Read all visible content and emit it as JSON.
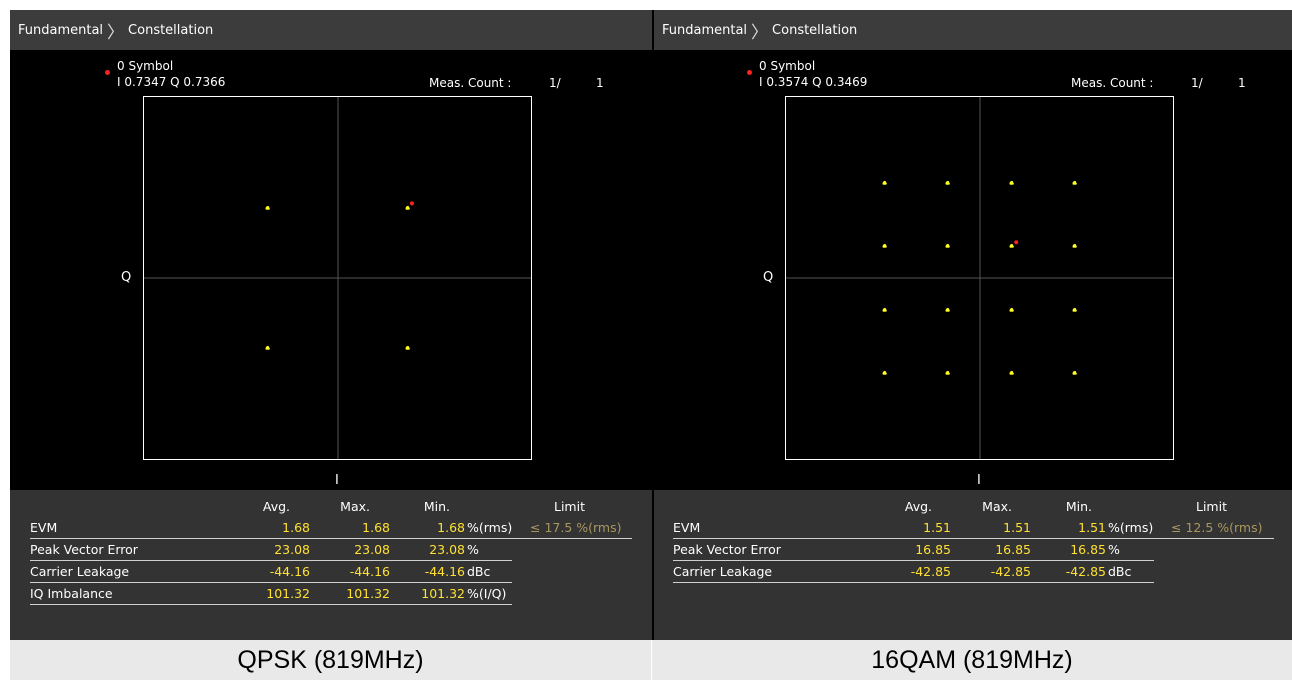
{
  "breadcrumb": {
    "root": "Fundamental",
    "separator": "〉",
    "page": "Constellation"
  },
  "panels": [
    {
      "id": "left",
      "marker": {
        "name": "0 Symbol",
        "readout": "I 0.7347 Q 0.7366"
      },
      "meas": {
        "label": "Meas. Count :",
        "current": "1/",
        "total": "1"
      },
      "axes": {
        "q_label": "Q",
        "i_label": "I"
      },
      "constellation": {
        "modulation": "QPSK",
        "points": [
          [
            -0.7,
            0.7
          ],
          [
            0.7,
            0.7
          ],
          [
            -0.7,
            -0.7
          ],
          [
            0.7,
            -0.7
          ]
        ],
        "marker_point": [
          0.7347,
          0.7366
        ],
        "dot_color": "#ffff20",
        "marker_color": "#ff2020"
      },
      "table": {
        "headers": {
          "avg": "Avg.",
          "max": "Max.",
          "min": "Min.",
          "limit": "Limit"
        },
        "rows": [
          {
            "name": "EVM",
            "avg": "1.68",
            "max": "1.68",
            "min": "1.68",
            "unit": "%(rms)",
            "limit": "≤ 17.5 %(rms)"
          },
          {
            "name": "Peak Vector Error",
            "avg": "23.08",
            "max": "23.08",
            "min": "23.08",
            "unit": "%",
            "limit": ""
          },
          {
            "name": "Carrier Leakage",
            "avg": "-44.16",
            "max": "-44.16",
            "min": "-44.16",
            "unit": "dBc",
            "limit": ""
          },
          {
            "name": "IQ Imbalance",
            "avg": "101.32",
            "max": "101.32",
            "min": "101.32",
            "unit": "%(I/Q)",
            "limit": ""
          }
        ]
      },
      "caption": "QPSK (819MHz)"
    },
    {
      "id": "right",
      "marker": {
        "name": "0 Symbol",
        "readout": "I 0.3574 Q 0.3469"
      },
      "meas": {
        "label": "Meas. Count :",
        "current": "1/",
        "total": "1"
      },
      "axes": {
        "q_label": "Q",
        "i_label": "I"
      },
      "constellation": {
        "modulation": "16QAM",
        "points": [
          [
            -0.95,
            0.95
          ],
          [
            -0.32,
            0.95
          ],
          [
            0.32,
            0.95
          ],
          [
            0.95,
            0.95
          ],
          [
            -0.95,
            0.32
          ],
          [
            -0.32,
            0.32
          ],
          [
            0.32,
            0.32
          ],
          [
            0.95,
            0.32
          ],
          [
            -0.95,
            -0.32
          ],
          [
            -0.32,
            -0.32
          ],
          [
            0.32,
            -0.32
          ],
          [
            0.95,
            -0.32
          ],
          [
            -0.95,
            -0.95
          ],
          [
            -0.32,
            -0.95
          ],
          [
            0.32,
            -0.95
          ],
          [
            0.95,
            -0.95
          ]
        ],
        "marker_point": [
          0.3574,
          0.3469
        ],
        "dot_color": "#ffff20",
        "marker_color": "#ff2020"
      },
      "table": {
        "headers": {
          "avg": "Avg.",
          "max": "Max.",
          "min": "Min.",
          "limit": "Limit"
        },
        "rows": [
          {
            "name": "EVM",
            "avg": "1.51",
            "max": "1.51",
            "min": "1.51",
            "unit": "%(rms)",
            "limit": "≤ 12.5 %(rms)"
          },
          {
            "name": "Peak Vector Error",
            "avg": "16.85",
            "max": "16.85",
            "min": "16.85",
            "unit": "%",
            "limit": ""
          },
          {
            "name": "Carrier Leakage",
            "avg": "-42.85",
            "max": "-42.85",
            "min": "-42.85",
            "unit": "dBc",
            "limit": ""
          }
        ]
      },
      "caption": "16QAM (819MHz)"
    }
  ]
}
